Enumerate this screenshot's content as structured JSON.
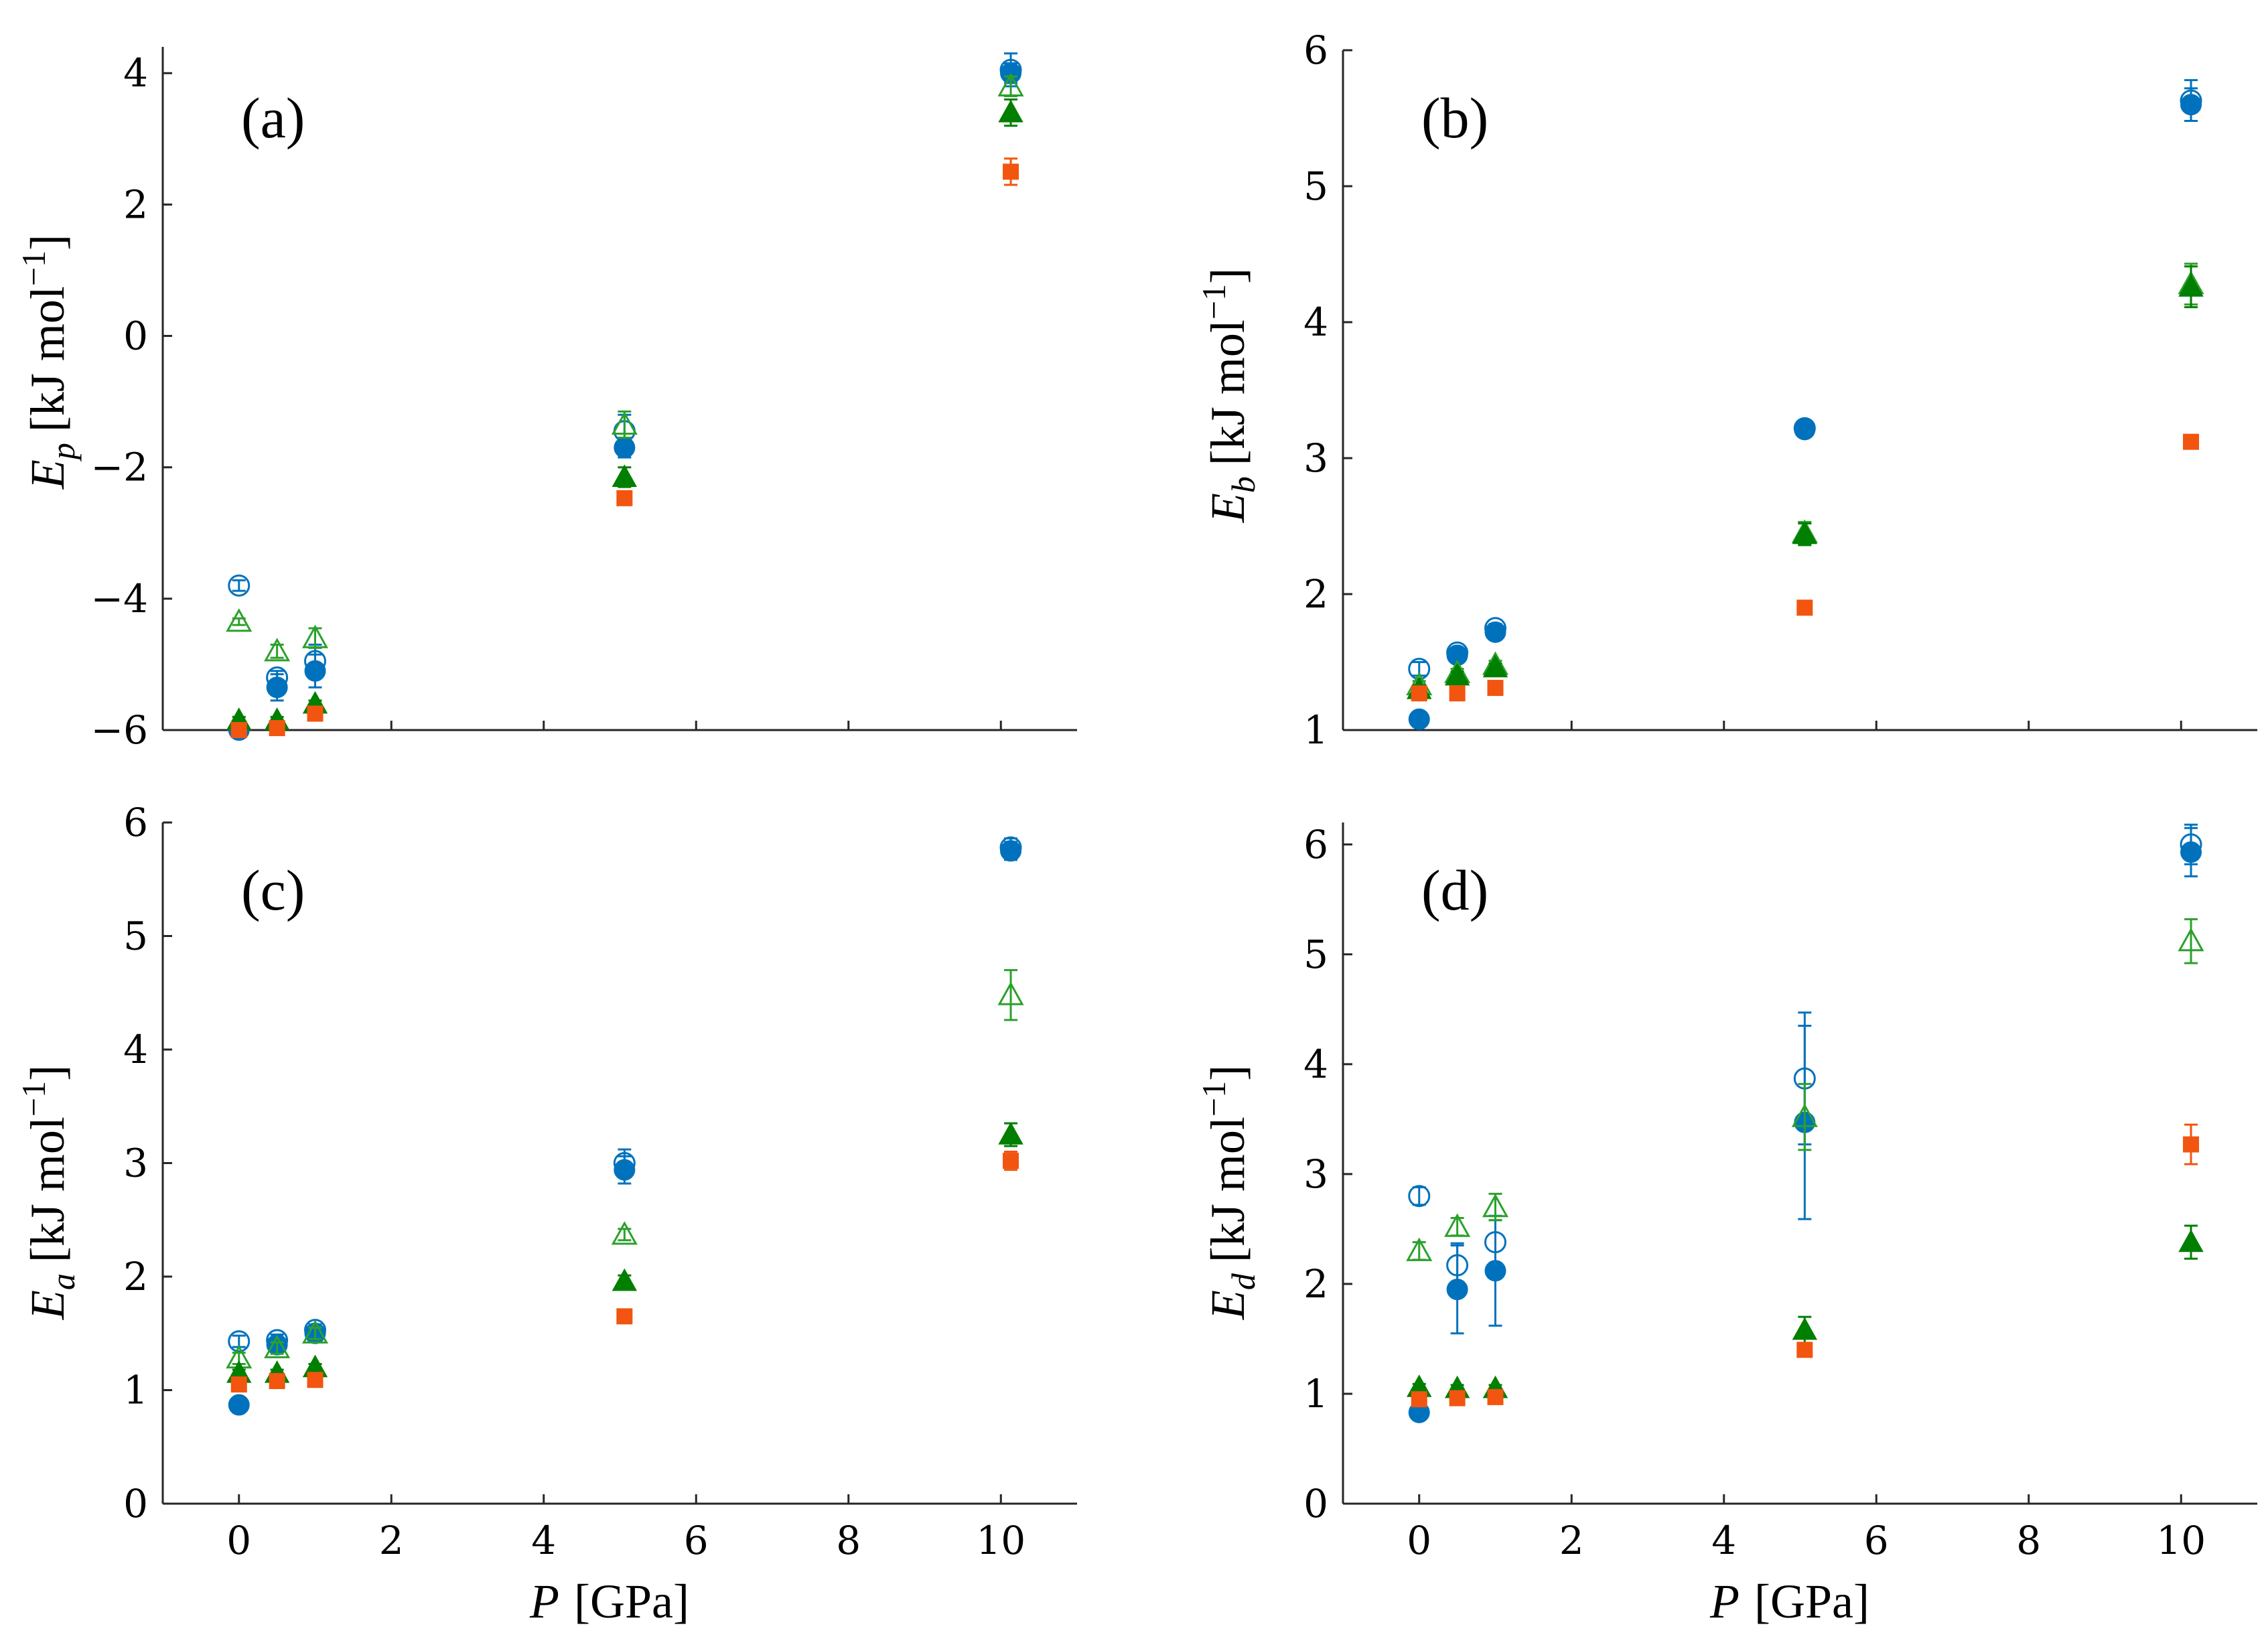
{
  "chart_data": [
    {
      "type": "scatter",
      "panel_label": "(a)",
      "ylabel": {
        "symbol": "E",
        "subscript": "p",
        "unit": "[kJ mol",
        "exponent": "−1",
        "close": "]"
      },
      "xlabel": "",
      "xlim": [
        -1,
        11
      ],
      "ylim": [
        -6,
        4.4
      ],
      "xticks": [
        0,
        2,
        4,
        6,
        8,
        10
      ],
      "show_xtick_labels": false,
      "yticks": [
        -6,
        -4,
        -2,
        0,
        2,
        4
      ],
      "ytick_labels": [
        "−6",
        "−4",
        "−2",
        "0",
        "2",
        "4"
      ],
      "series": [
        {
          "name": "filled-circle",
          "marker": "circle",
          "filled": true,
          "color": "#0072BD",
          "x": [
            0,
            0.5,
            1,
            5.06,
            10.13
          ],
          "y": [
            -6.0,
            -5.35,
            -5.1,
            -1.7,
            4.0
          ],
          "err": [
            0.05,
            0.2,
            0.25,
            0.15,
            0.15
          ]
        },
        {
          "name": "open-circle",
          "marker": "circle",
          "filled": false,
          "color": "#0072BD",
          "x": [
            0,
            0.5,
            1,
            5.06,
            10.13
          ],
          "y": [
            -3.8,
            -5.2,
            -4.95,
            -1.45,
            4.05
          ],
          "err": [
            0.08,
            0.1,
            0.25,
            0.25,
            0.25
          ]
        },
        {
          "name": "open-triangle",
          "marker": "triangle",
          "filled": false,
          "color": "#2CA02C",
          "x": [
            0,
            0.5,
            1,
            5.06,
            10.13
          ],
          "y": [
            -4.35,
            -4.8,
            -4.6,
            -1.35,
            3.8
          ],
          "err": [
            0.05,
            0.1,
            0.15,
            0.2,
            0.15
          ]
        },
        {
          "name": "filled-triangle",
          "marker": "triangle",
          "filled": true,
          "color": "#007F00",
          "x": [
            0,
            0.5,
            1,
            5.06,
            10.13
          ],
          "y": [
            -5.85,
            -5.85,
            -5.6,
            -2.15,
            3.4
          ],
          "err": [
            0.05,
            0.05,
            0.05,
            0.15,
            0.2
          ]
        },
        {
          "name": "filled-square",
          "marker": "square",
          "filled": true,
          "color": "#F2550F",
          "x": [
            0,
            0.5,
            1,
            5.06,
            10.13
          ],
          "y": [
            -6.0,
            -5.97,
            -5.75,
            -2.47,
            2.5
          ],
          "err": [
            0.03,
            0.03,
            0.05,
            0.08,
            0.2
          ]
        }
      ]
    },
    {
      "type": "scatter",
      "panel_label": "(b)",
      "ylabel": {
        "symbol": "E",
        "subscript": "b",
        "unit": "[kJ mol",
        "exponent": "−1",
        "close": "]"
      },
      "xlabel": "",
      "xlim": [
        -1,
        11
      ],
      "ylim": [
        1,
        6
      ],
      "xticks": [
        0,
        2,
        4,
        6,
        8,
        10
      ],
      "show_xtick_labels": false,
      "yticks": [
        1,
        2,
        3,
        4,
        5,
        6
      ],
      "ytick_labels": [
        "1",
        "2",
        "3",
        "4",
        "5",
        "6"
      ],
      "series": [
        {
          "name": "filled-circle",
          "marker": "circle",
          "filled": true,
          "color": "#0072BD",
          "x": [
            0,
            0.5,
            1,
            5.06,
            10.13
          ],
          "y": [
            1.08,
            1.55,
            1.72,
            3.21,
            5.6
          ],
          "err": [
            0.02,
            0.03,
            0.04,
            0.03,
            0.12
          ]
        },
        {
          "name": "open-circle",
          "marker": "circle",
          "filled": false,
          "color": "#0072BD",
          "x": [
            0,
            0.5,
            1,
            5.06,
            10.13
          ],
          "y": [
            1.45,
            1.57,
            1.75,
            3.22,
            5.63
          ],
          "err": [
            0.05,
            0.03,
            0.03,
            0.03,
            0.15
          ]
        },
        {
          "name": "open-triangle",
          "marker": "triangle",
          "filled": false,
          "color": "#2CA02C",
          "x": [
            0,
            0.5,
            1,
            5.06,
            10.13
          ],
          "y": [
            1.33,
            1.42,
            1.48,
            2.45,
            4.28
          ],
          "err": [
            0.03,
            0.03,
            0.03,
            0.08,
            0.15
          ]
        },
        {
          "name": "filled-triangle",
          "marker": "triangle",
          "filled": true,
          "color": "#007F00",
          "x": [
            0,
            0.5,
            1,
            5.06,
            10.13
          ],
          "y": [
            1.3,
            1.4,
            1.46,
            2.44,
            4.26
          ],
          "err": [
            0.03,
            0.03,
            0.03,
            0.08,
            0.15
          ]
        },
        {
          "name": "filled-square",
          "marker": "square",
          "filled": true,
          "color": "#F2550F",
          "x": [
            0,
            0.5,
            1,
            5.06,
            10.13
          ],
          "y": [
            1.27,
            1.27,
            1.31,
            1.9,
            3.12
          ],
          "err": [
            0.02,
            0.02,
            0.02,
            0.03,
            0.05
          ]
        }
      ]
    },
    {
      "type": "scatter",
      "panel_label": "(c)",
      "ylabel": {
        "symbol": "E",
        "subscript": "a",
        "unit": "[kJ mol",
        "exponent": "−1",
        "close": "]"
      },
      "xlabel": "GPa",
      "xlabel_symbol": "P",
      "xlim": [
        -1,
        11
      ],
      "ylim": [
        0,
        6
      ],
      "xticks": [
        0,
        2,
        4,
        6,
        8,
        10
      ],
      "show_xtick_labels": true,
      "xtick_labels": [
        "0",
        "2",
        "4",
        "6",
        "8",
        "10"
      ],
      "yticks": [
        0,
        1,
        2,
        3,
        4,
        5,
        6
      ],
      "ytick_labels": [
        "0",
        "1",
        "2",
        "3",
        "4",
        "5",
        "6"
      ],
      "series": [
        {
          "name": "filled-circle",
          "marker": "circle",
          "filled": true,
          "color": "#0072BD",
          "x": [
            0,
            0.5,
            1,
            5.06,
            10.13
          ],
          "y": [
            0.87,
            1.4,
            1.5,
            2.94,
            5.75
          ],
          "err": [
            0.02,
            0.05,
            0.05,
            0.12,
            0.08
          ]
        },
        {
          "name": "open-circle",
          "marker": "circle",
          "filled": false,
          "color": "#0072BD",
          "x": [
            0,
            0.5,
            1,
            5.06,
            10.13
          ],
          "y": [
            1.43,
            1.44,
            1.53,
            3.0,
            5.78
          ],
          "err": [
            0.05,
            0.05,
            0.05,
            0.12,
            0.08
          ]
        },
        {
          "name": "open-triangle",
          "marker": "triangle",
          "filled": false,
          "color": "#2CA02C",
          "x": [
            0,
            0.5,
            1,
            5.06,
            10.13
          ],
          "y": [
            1.28,
            1.37,
            1.5,
            2.37,
            4.48
          ],
          "err": [
            0.05,
            0.05,
            0.05,
            0.05,
            0.22
          ]
        },
        {
          "name": "filled-triangle",
          "marker": "triangle",
          "filled": true,
          "color": "#007F00",
          "x": [
            0,
            0.5,
            1,
            5.06,
            10.13
          ],
          "y": [
            1.15,
            1.15,
            1.2,
            1.96,
            3.25
          ],
          "err": [
            0.03,
            0.03,
            0.03,
            0.05,
            0.1
          ]
        },
        {
          "name": "filled-square",
          "marker": "square",
          "filled": true,
          "color": "#F2550F",
          "x": [
            0,
            0.5,
            1,
            5.06,
            10.13
          ],
          "y": [
            1.05,
            1.08,
            1.09,
            1.65,
            3.02
          ],
          "err": [
            0.02,
            0.02,
            0.02,
            0.03,
            0.08
          ]
        }
      ]
    },
    {
      "type": "scatter",
      "panel_label": "(d)",
      "ylabel": {
        "symbol": "E",
        "subscript": "d",
        "unit": "[kJ mol",
        "exponent": "−1",
        "close": "]"
      },
      "xlabel": "GPa",
      "xlabel_symbol": "P",
      "xlim": [
        -1,
        11
      ],
      "ylim": [
        0,
        6.2
      ],
      "xticks": [
        0,
        2,
        4,
        6,
        8,
        10
      ],
      "show_xtick_labels": true,
      "xtick_labels": [
        "0",
        "2",
        "4",
        "6",
        "8",
        "10"
      ],
      "yticks": [
        0,
        1,
        2,
        3,
        4,
        5,
        6
      ],
      "ytick_labels": [
        "0",
        "1",
        "2",
        "3",
        "4",
        "5",
        "6"
      ],
      "series": [
        {
          "name": "filled-circle",
          "marker": "circle",
          "filled": true,
          "color": "#0072BD",
          "x": [
            0,
            0.5,
            1,
            5.06,
            10.13
          ],
          "y": [
            0.83,
            1.95,
            2.12,
            3.47,
            5.93
          ],
          "err": [
            0.02,
            0.4,
            0.5,
            0.88,
            0.22
          ]
        },
        {
          "name": "open-circle",
          "marker": "circle",
          "filled": false,
          "color": "#0072BD",
          "x": [
            0,
            0.5,
            1,
            5.06,
            10.13
          ],
          "y": [
            2.8,
            2.17,
            2.38,
            3.87,
            6.0
          ],
          "err": [
            0.08,
            0.2,
            0.2,
            0.6,
            0.18
          ]
        },
        {
          "name": "open-triangle",
          "marker": "triangle",
          "filled": false,
          "color": "#2CA02C",
          "x": [
            0,
            0.5,
            1,
            5.06,
            10.13
          ],
          "y": [
            2.3,
            2.52,
            2.7,
            3.52,
            5.12
          ],
          "err": [
            0.08,
            0.08,
            0.12,
            0.3,
            0.2
          ]
        },
        {
          "name": "filled-triangle",
          "marker": "triangle",
          "filled": true,
          "color": "#007F00",
          "x": [
            0,
            0.5,
            1,
            5.06,
            10.13
          ],
          "y": [
            1.06,
            1.05,
            1.05,
            1.58,
            2.38
          ],
          "err": [
            0.03,
            0.03,
            0.03,
            0.12,
            0.15
          ]
        },
        {
          "name": "filled-square",
          "marker": "square",
          "filled": true,
          "color": "#F2550F",
          "x": [
            0,
            0.5,
            1,
            5.06,
            10.13
          ],
          "y": [
            0.95,
            0.96,
            0.97,
            1.4,
            3.27
          ],
          "err": [
            0.02,
            0.02,
            0.02,
            0.06,
            0.18
          ]
        }
      ]
    }
  ]
}
